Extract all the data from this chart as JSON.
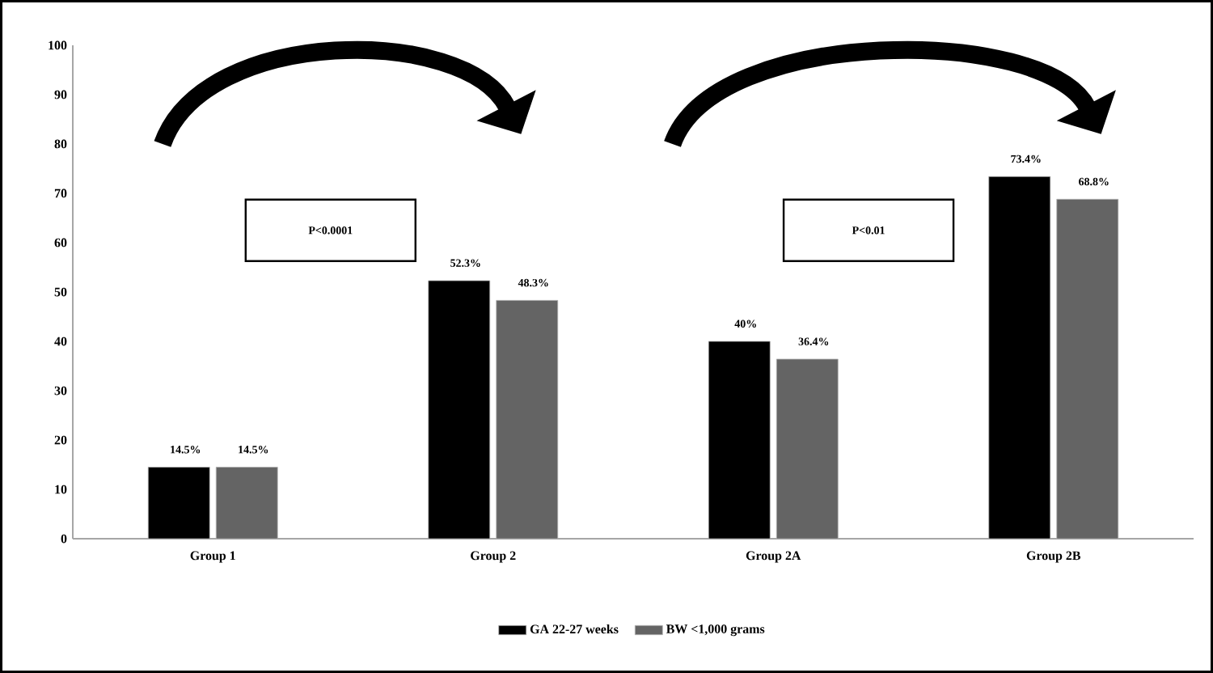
{
  "chart_data": {
    "type": "bar",
    "categories": [
      "Group 1",
      "Group 2",
      "Group 2A",
      "Group 2B"
    ],
    "series": [
      {
        "name": "GA 22-27 weeks",
        "color": "#000000",
        "values": [
          14.5,
          52.3,
          40,
          73.4
        ],
        "value_labels": [
          "14.5%",
          "52.3%",
          "40%",
          "73.4%"
        ]
      },
      {
        "name": "BW <1,000 grams",
        "color": "#646464",
        "values": [
          14.5,
          48.3,
          36.4,
          68.8
        ],
        "value_labels": [
          "14.5%",
          "48.3%",
          "36.4%",
          "68.8%"
        ]
      }
    ],
    "ylim": [
      0,
      100
    ],
    "yticks": [
      0,
      10,
      20,
      30,
      40,
      50,
      60,
      70,
      80,
      90,
      100
    ],
    "grid": false,
    "legend": "bottom",
    "annotations": [
      "P<0.0001",
      "P<0.01"
    ]
  }
}
